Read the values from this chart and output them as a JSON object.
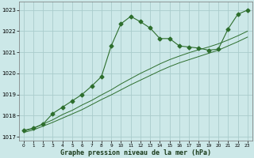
{
  "xlabel": "Graphe pression niveau de la mer (hPa)",
  "background_color": "#cce8e8",
  "grid_color": "#aacccc",
  "line_color": "#2d6e2d",
  "ylim": [
    1016.8,
    1023.4
  ],
  "xlim": [
    -0.5,
    23.5
  ],
  "yticks": [
    1017,
    1018,
    1019,
    1020,
    1021,
    1022,
    1023
  ],
  "xticks": [
    0,
    1,
    2,
    3,
    4,
    5,
    6,
    7,
    8,
    9,
    10,
    11,
    12,
    13,
    14,
    15,
    16,
    17,
    18,
    19,
    20,
    21,
    22,
    23
  ],
  "series1": {
    "x": [
      0,
      1,
      2,
      3,
      4,
      5,
      6,
      7,
      8,
      9,
      10,
      11,
      12,
      13,
      14,
      15,
      16,
      17,
      18,
      19,
      20,
      21,
      22,
      23
    ],
    "y": [
      1017.3,
      1017.4,
      1017.6,
      1018.1,
      1018.4,
      1018.7,
      1019.0,
      1019.4,
      1019.85,
      1021.3,
      1022.35,
      1022.7,
      1022.45,
      1022.15,
      1021.65,
      1021.65,
      1021.3,
      1021.25,
      1021.2,
      1021.1,
      1021.15,
      1022.1,
      1022.8,
      1023.0
    ],
    "marker": "D",
    "markersize": 2.5
  },
  "series2": {
    "x": [
      0,
      1,
      2,
      3,
      4,
      5,
      6,
      7,
      8,
      9,
      10,
      11,
      12,
      13,
      14,
      15,
      16,
      17,
      18,
      19,
      20,
      21,
      22,
      23
    ],
    "y": [
      1017.25,
      1017.4,
      1017.6,
      1017.8,
      1018.05,
      1018.25,
      1018.5,
      1018.72,
      1018.98,
      1019.22,
      1019.5,
      1019.75,
      1020.0,
      1020.22,
      1020.45,
      1020.65,
      1020.82,
      1020.98,
      1021.12,
      1021.25,
      1021.4,
      1021.58,
      1021.78,
      1022.0
    ]
  },
  "series3": {
    "x": [
      0,
      1,
      2,
      3,
      4,
      5,
      6,
      7,
      8,
      9,
      10,
      11,
      12,
      13,
      14,
      15,
      16,
      17,
      18,
      19,
      20,
      21,
      22,
      23
    ],
    "y": [
      1017.2,
      1017.32,
      1017.5,
      1017.68,
      1017.88,
      1018.08,
      1018.28,
      1018.52,
      1018.76,
      1018.98,
      1019.22,
      1019.46,
      1019.68,
      1019.9,
      1020.12,
      1020.32,
      1020.5,
      1020.65,
      1020.8,
      1020.95,
      1021.1,
      1021.3,
      1021.5,
      1021.72
    ]
  }
}
